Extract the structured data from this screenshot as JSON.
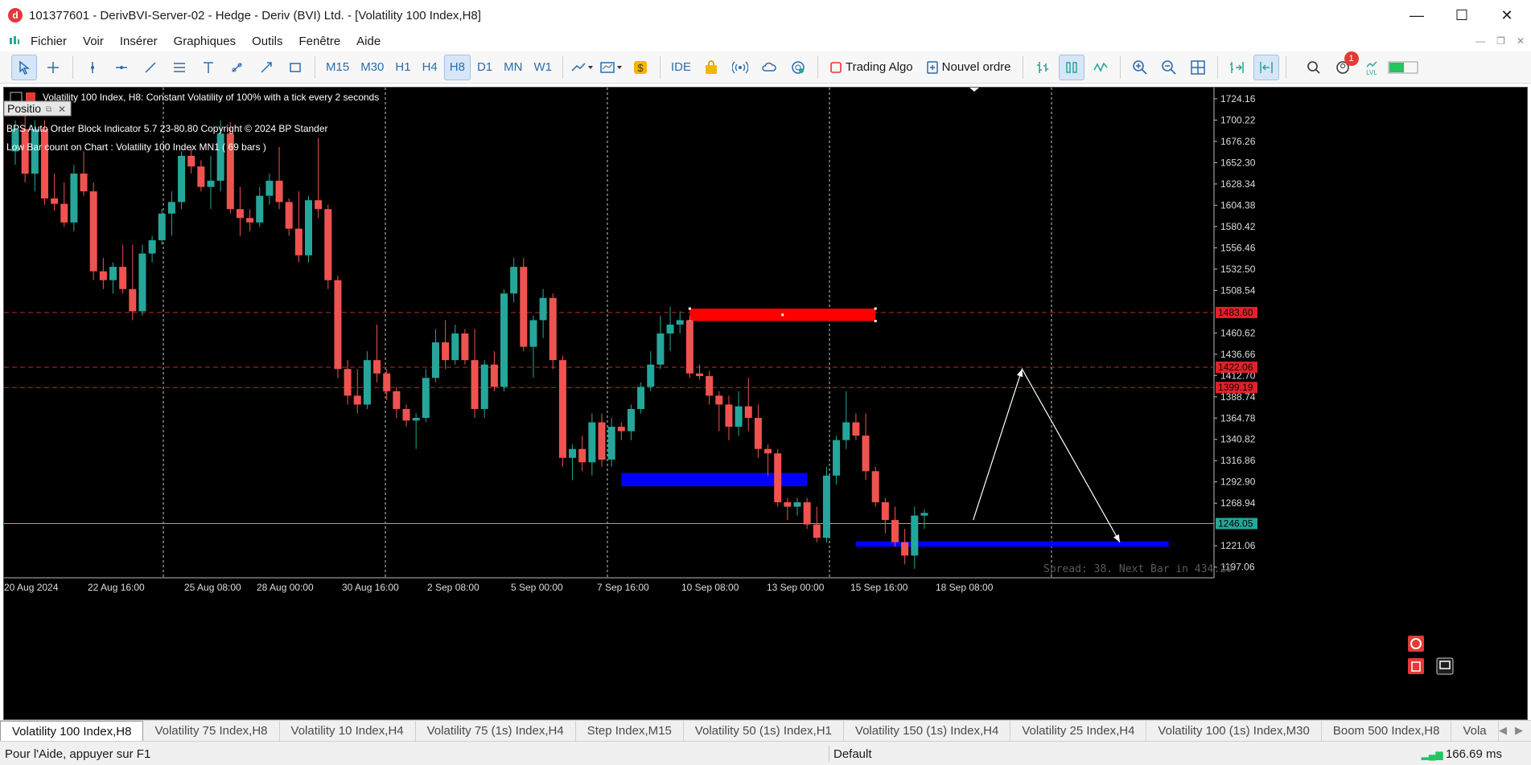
{
  "window": {
    "title": "101377601 - DerivBVI-Server-02 - Hedge - Deriv (BVI) Ltd. - [Volatility 100 Index,H8]",
    "app_icon_letter": "d",
    "minimize": "—",
    "maximize": "☐",
    "close": "✕"
  },
  "menu": [
    "Fichier",
    "Voir",
    "Insérer",
    "Graphiques",
    "Outils",
    "Fenêtre",
    "Aide"
  ],
  "mdi_controls": [
    "—",
    "❐",
    "✕"
  ],
  "toolbar": {
    "timeframes": [
      "M15",
      "M30",
      "H1",
      "H4",
      "H8",
      "D1",
      "MN",
      "W1"
    ],
    "active_timeframe": "H8",
    "ide_label": "IDE",
    "algo_label": "Trading Algo",
    "new_order_label": "Nouvel ordre",
    "notification_count": "1",
    "lvl_label": "LVL"
  },
  "chart": {
    "header_symbol": "Volatility 100 Index, H8:  Constant Volatility of 100% with a tick every 2 seconds",
    "indicator_line": "BPS Auto Order Block Indicator  5.7 23-80.80 Copyright © 2024 BP Stander",
    "lowbar_line": "Low Bar count on Chart :  Volatility 100 Index   MN1    (  69  bars  )",
    "panel_label": "Positio",
    "spread_text": "Spread: 38. Next Bar in 434:20",
    "price_ticks": [
      "1724.16",
      "1700.22",
      "1676.26",
      "1652.30",
      "1628.34",
      "1604.38",
      "1580.42",
      "1556.46",
      "1532.50",
      "1508.54",
      "1460.62",
      "1436.66",
      "1412.70",
      "1388.74",
      "1364.78",
      "1340.82",
      "1316.86",
      "1292.90",
      "1268.94",
      "1221.06",
      "1197.06"
    ],
    "tagged_prices": [
      {
        "label": "1483.60",
        "value": 1483.6,
        "color": "#e0222a"
      },
      {
        "label": "1422.06",
        "value": 1422.06,
        "color": "#e0222a"
      },
      {
        "label": "1399.19",
        "value": 1399.19,
        "color": "#e0222a"
      },
      {
        "label": "1246.05",
        "value": 1246.05,
        "color": "#26a69a"
      }
    ],
    "time_labels": [
      "20 Aug 2024",
      "22 Aug 16:00",
      "25 Aug 08:00",
      "28 Aug 00:00",
      "30 Aug 16:00",
      "2 Sep 08:00",
      "5 Sep 00:00",
      "7 Sep 16:00",
      "10 Sep 08:00",
      "13 Sep 00:00",
      "15 Sep 16:00",
      "18 Sep 08:00"
    ],
    "colors": {
      "bull": "#26a69a",
      "bear": "#ef5350",
      "bg": "#000000",
      "grid": "#c8c8c8"
    }
  },
  "chart_data": {
    "type": "candlestick",
    "ylim": [
      1185,
      1735
    ],
    "candles": [
      [
        1665,
        1700,
        1650,
        1690
      ],
      [
        1690,
        1705,
        1630,
        1640
      ],
      [
        1640,
        1700,
        1620,
        1690
      ],
      [
        1690,
        1700,
        1605,
        1612
      ],
      [
        1612,
        1640,
        1598,
        1606
      ],
      [
        1606,
        1630,
        1580,
        1585
      ],
      [
        1585,
        1650,
        1575,
        1640
      ],
      [
        1640,
        1665,
        1615,
        1620
      ],
      [
        1620,
        1630,
        1520,
        1530
      ],
      [
        1530,
        1545,
        1510,
        1520
      ],
      [
        1520,
        1540,
        1505,
        1535
      ],
      [
        1535,
        1560,
        1505,
        1510
      ],
      [
        1510,
        1560,
        1475,
        1485
      ],
      [
        1485,
        1560,
        1480,
        1550
      ],
      [
        1550,
        1570,
        1540,
        1565
      ],
      [
        1565,
        1600,
        1560,
        1595
      ],
      [
        1595,
        1620,
        1570,
        1608
      ],
      [
        1608,
        1665,
        1600,
        1660
      ],
      [
        1660,
        1670,
        1640,
        1648
      ],
      [
        1648,
        1655,
        1620,
        1625
      ],
      [
        1625,
        1660,
        1600,
        1632
      ],
      [
        1632,
        1700,
        1620,
        1685
      ],
      [
        1685,
        1698,
        1595,
        1600
      ],
      [
        1600,
        1625,
        1570,
        1590
      ],
      [
        1590,
        1600,
        1575,
        1585
      ],
      [
        1585,
        1625,
        1580,
        1615
      ],
      [
        1615,
        1640,
        1605,
        1632
      ],
      [
        1632,
        1670,
        1600,
        1608
      ],
      [
        1608,
        1612,
        1570,
        1578
      ],
      [
        1578,
        1620,
        1540,
        1548
      ],
      [
        1548,
        1615,
        1540,
        1610
      ],
      [
        1610,
        1680,
        1590,
        1600
      ],
      [
        1600,
        1605,
        1510,
        1520
      ],
      [
        1520,
        1525,
        1410,
        1420
      ],
      [
        1420,
        1430,
        1380,
        1390
      ],
      [
        1390,
        1420,
        1370,
        1380
      ],
      [
        1380,
        1440,
        1375,
        1430
      ],
      [
        1430,
        1470,
        1405,
        1415
      ],
      [
        1415,
        1420,
        1385,
        1395
      ],
      [
        1395,
        1400,
        1365,
        1375
      ],
      [
        1375,
        1380,
        1355,
        1362
      ],
      [
        1362,
        1370,
        1330,
        1365
      ],
      [
        1365,
        1420,
        1360,
        1410
      ],
      [
        1410,
        1465,
        1405,
        1450
      ],
      [
        1450,
        1475,
        1420,
        1430
      ],
      [
        1430,
        1470,
        1425,
        1460
      ],
      [
        1460,
        1465,
        1425,
        1430
      ],
      [
        1430,
        1465,
        1365,
        1375
      ],
      [
        1375,
        1430,
        1365,
        1425
      ],
      [
        1425,
        1440,
        1395,
        1400
      ],
      [
        1400,
        1510,
        1395,
        1505
      ],
      [
        1505,
        1545,
        1495,
        1535
      ],
      [
        1535,
        1545,
        1440,
        1445
      ],
      [
        1445,
        1480,
        1410,
        1475
      ],
      [
        1475,
        1510,
        1455,
        1500
      ],
      [
        1500,
        1505,
        1420,
        1430
      ],
      [
        1430,
        1435,
        1310,
        1320
      ],
      [
        1320,
        1335,
        1295,
        1330
      ],
      [
        1330,
        1345,
        1305,
        1315
      ],
      [
        1315,
        1370,
        1300,
        1360
      ],
      [
        1360,
        1370,
        1310,
        1318
      ],
      [
        1318,
        1365,
        1310,
        1355
      ],
      [
        1355,
        1360,
        1340,
        1350
      ],
      [
        1350,
        1380,
        1340,
        1375
      ],
      [
        1375,
        1405,
        1370,
        1400
      ],
      [
        1400,
        1440,
        1395,
        1425
      ],
      [
        1425,
        1480,
        1420,
        1460
      ],
      [
        1460,
        1490,
        1440,
        1470
      ],
      [
        1470,
        1485,
        1460,
        1475
      ],
      [
        1475,
        1480,
        1410,
        1415
      ],
      [
        1415,
        1425,
        1408,
        1412
      ],
      [
        1412,
        1418,
        1380,
        1390
      ],
      [
        1390,
        1395,
        1350,
        1380
      ],
      [
        1380,
        1390,
        1340,
        1355
      ],
      [
        1355,
        1395,
        1345,
        1378
      ],
      [
        1378,
        1410,
        1350,
        1365
      ],
      [
        1365,
        1380,
        1320,
        1330
      ],
      [
        1330,
        1335,
        1300,
        1325
      ],
      [
        1325,
        1330,
        1265,
        1270
      ],
      [
        1270,
        1275,
        1250,
        1265
      ],
      [
        1265,
        1275,
        1255,
        1270
      ],
      [
        1270,
        1275,
        1240,
        1245
      ],
      [
        1245,
        1265,
        1225,
        1230
      ],
      [
        1230,
        1310,
        1225,
        1300
      ],
      [
        1300,
        1345,
        1290,
        1340
      ],
      [
        1340,
        1395,
        1330,
        1360
      ],
      [
        1360,
        1370,
        1340,
        1345
      ],
      [
        1345,
        1370,
        1295,
        1305
      ],
      [
        1305,
        1310,
        1265,
        1270
      ],
      [
        1270,
        1275,
        1235,
        1250
      ],
      [
        1250,
        1265,
        1220,
        1225
      ],
      [
        1225,
        1240,
        1200,
        1210
      ],
      [
        1210,
        1265,
        1195,
        1255
      ],
      [
        1255,
        1262,
        1240,
        1258
      ]
    ],
    "zones": [
      {
        "type": "supply",
        "from_index": 69,
        "to_index": 88,
        "top": 1488,
        "bottom": 1474,
        "color": "#ff0000"
      },
      {
        "type": "demand",
        "from_index": 62,
        "to_index": 81,
        "top": 1303,
        "bottom": 1288,
        "color": "#0000ff"
      },
      {
        "type": "demand",
        "from_index": 86,
        "to_index": 118,
        "top": 1226,
        "bottom": 1220,
        "color": "#0000ff"
      }
    ],
    "projection": [
      [
        98,
        1250
      ],
      [
        103,
        1420
      ],
      [
        113,
        1225
      ]
    ]
  }
}
